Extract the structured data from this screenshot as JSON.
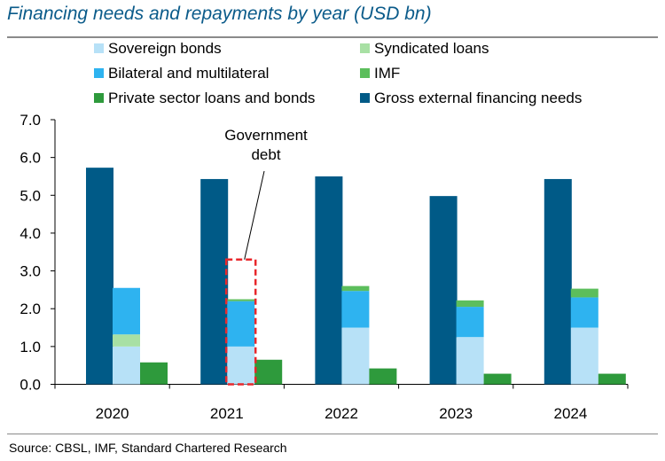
{
  "chart_data": {
    "type": "bar",
    "title": "Financing needs and repayments by year (USD bn)",
    "categories": [
      "2020",
      "2021",
      "2022",
      "2023",
      "2024"
    ],
    "ylim": [
      0,
      7
    ],
    "yticks": [
      "0.0",
      "1.0",
      "2.0",
      "3.0",
      "4.0",
      "5.0",
      "6.0",
      "7.0"
    ],
    "xlabel": "",
    "ylabel": "",
    "legend_position": "top",
    "series": [
      {
        "name": "Gross external financing needs",
        "group": "gross",
        "color": "#005a87",
        "values": [
          5.73,
          5.43,
          5.5,
          4.98,
          5.43
        ]
      },
      {
        "name": "Sovereign bonds",
        "group": "government",
        "color": "#b7e1f7",
        "values": [
          1.0,
          1.0,
          1.5,
          1.25,
          1.5
        ]
      },
      {
        "name": "Syndicated loans",
        "group": "government",
        "color": "#a8e0a4",
        "values": [
          0.32,
          0.0,
          0.0,
          0.0,
          0.0
        ]
      },
      {
        "name": "Bilateral and multilateral",
        "group": "government",
        "color": "#2eb3f0",
        "values": [
          1.23,
          1.2,
          0.97,
          0.8,
          0.8
        ]
      },
      {
        "name": "IMF",
        "group": "government",
        "color": "#5cbe5c",
        "values": [
          0.0,
          0.05,
          0.13,
          0.17,
          0.23
        ]
      },
      {
        "name": "Private sector loans and bonds",
        "group": "private",
        "color": "#2e9a3c",
        "values": [
          0.58,
          0.65,
          0.42,
          0.28,
          0.28
        ]
      }
    ],
    "legend_order": [
      "Sovereign bonds",
      "Syndicated loans",
      "Bilateral and multilateral",
      "IMF",
      "Private sector loans and bonds",
      "Gross external financing needs"
    ],
    "annotation": {
      "text_line1": "Government",
      "text_line2": "debt",
      "category": "2021",
      "box_top_value": 3.3,
      "box_color": "#e8272b"
    }
  },
  "source": "Source: CBSL, IMF, Standard Chartered Research"
}
